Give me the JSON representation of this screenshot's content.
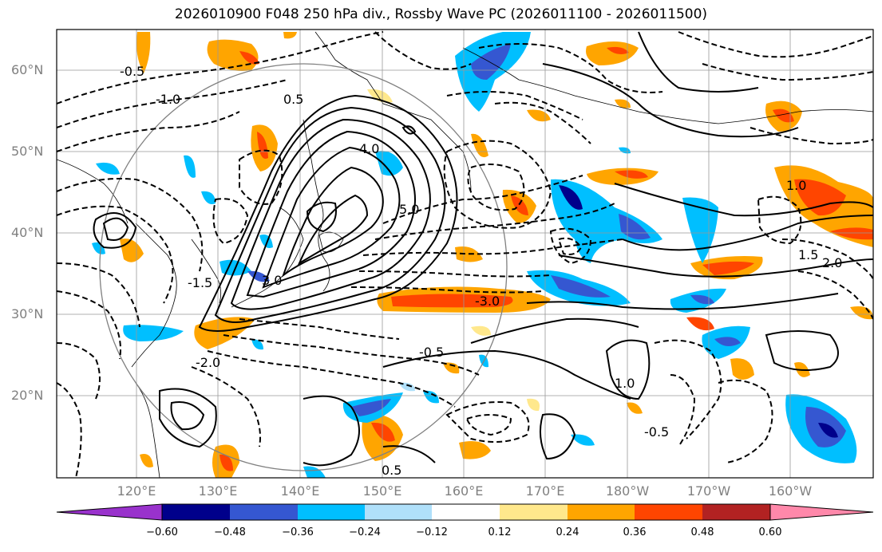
{
  "title": "2026010900 F048 250 hPa div., Rossby Wave PC (2026011100 - 2026011500)",
  "map": {
    "lat_labels": [
      "60°N",
      "50°N",
      "40°N",
      "30°N",
      "20°N"
    ],
    "lon_labels": [
      "120°E",
      "130°E",
      "140°E",
      "150°E",
      "160°E",
      "170°E",
      "180°W",
      "170°W",
      "160°W"
    ],
    "contour_labels": [
      "-0.5",
      "-1.0",
      "0.5",
      "1.0",
      "1.5",
      "2.0",
      "3.0",
      "4.0",
      "5.0",
      "-1.5",
      "-2.0",
      "-3.0",
      "-0.5",
      "1.0",
      "-0.5",
      "0.5"
    ]
  },
  "colorbar": {
    "ticks": [
      "−0.60",
      "−0.48",
      "−0.36",
      "−0.24",
      "−0.12",
      "0.12",
      "0.24",
      "0.36",
      "0.48",
      "0.60"
    ],
    "colors": [
      "#9932cc",
      "#00008b",
      "#3557d1",
      "#00bfff",
      "#b0e0fa",
      "#ffffff",
      "#ffe88c",
      "#ffa500",
      "#ff4500",
      "#b22222",
      "#ff88aa"
    ]
  },
  "shading_colors": {
    "pos_light": "#ffe88c",
    "pos": "#ffa500",
    "pos_strong": "#ff4500",
    "neg_light": "#b0e0fa",
    "neg": "#00bfff",
    "neg_strong": "#3557d1",
    "neg_max": "#00008b"
  }
}
